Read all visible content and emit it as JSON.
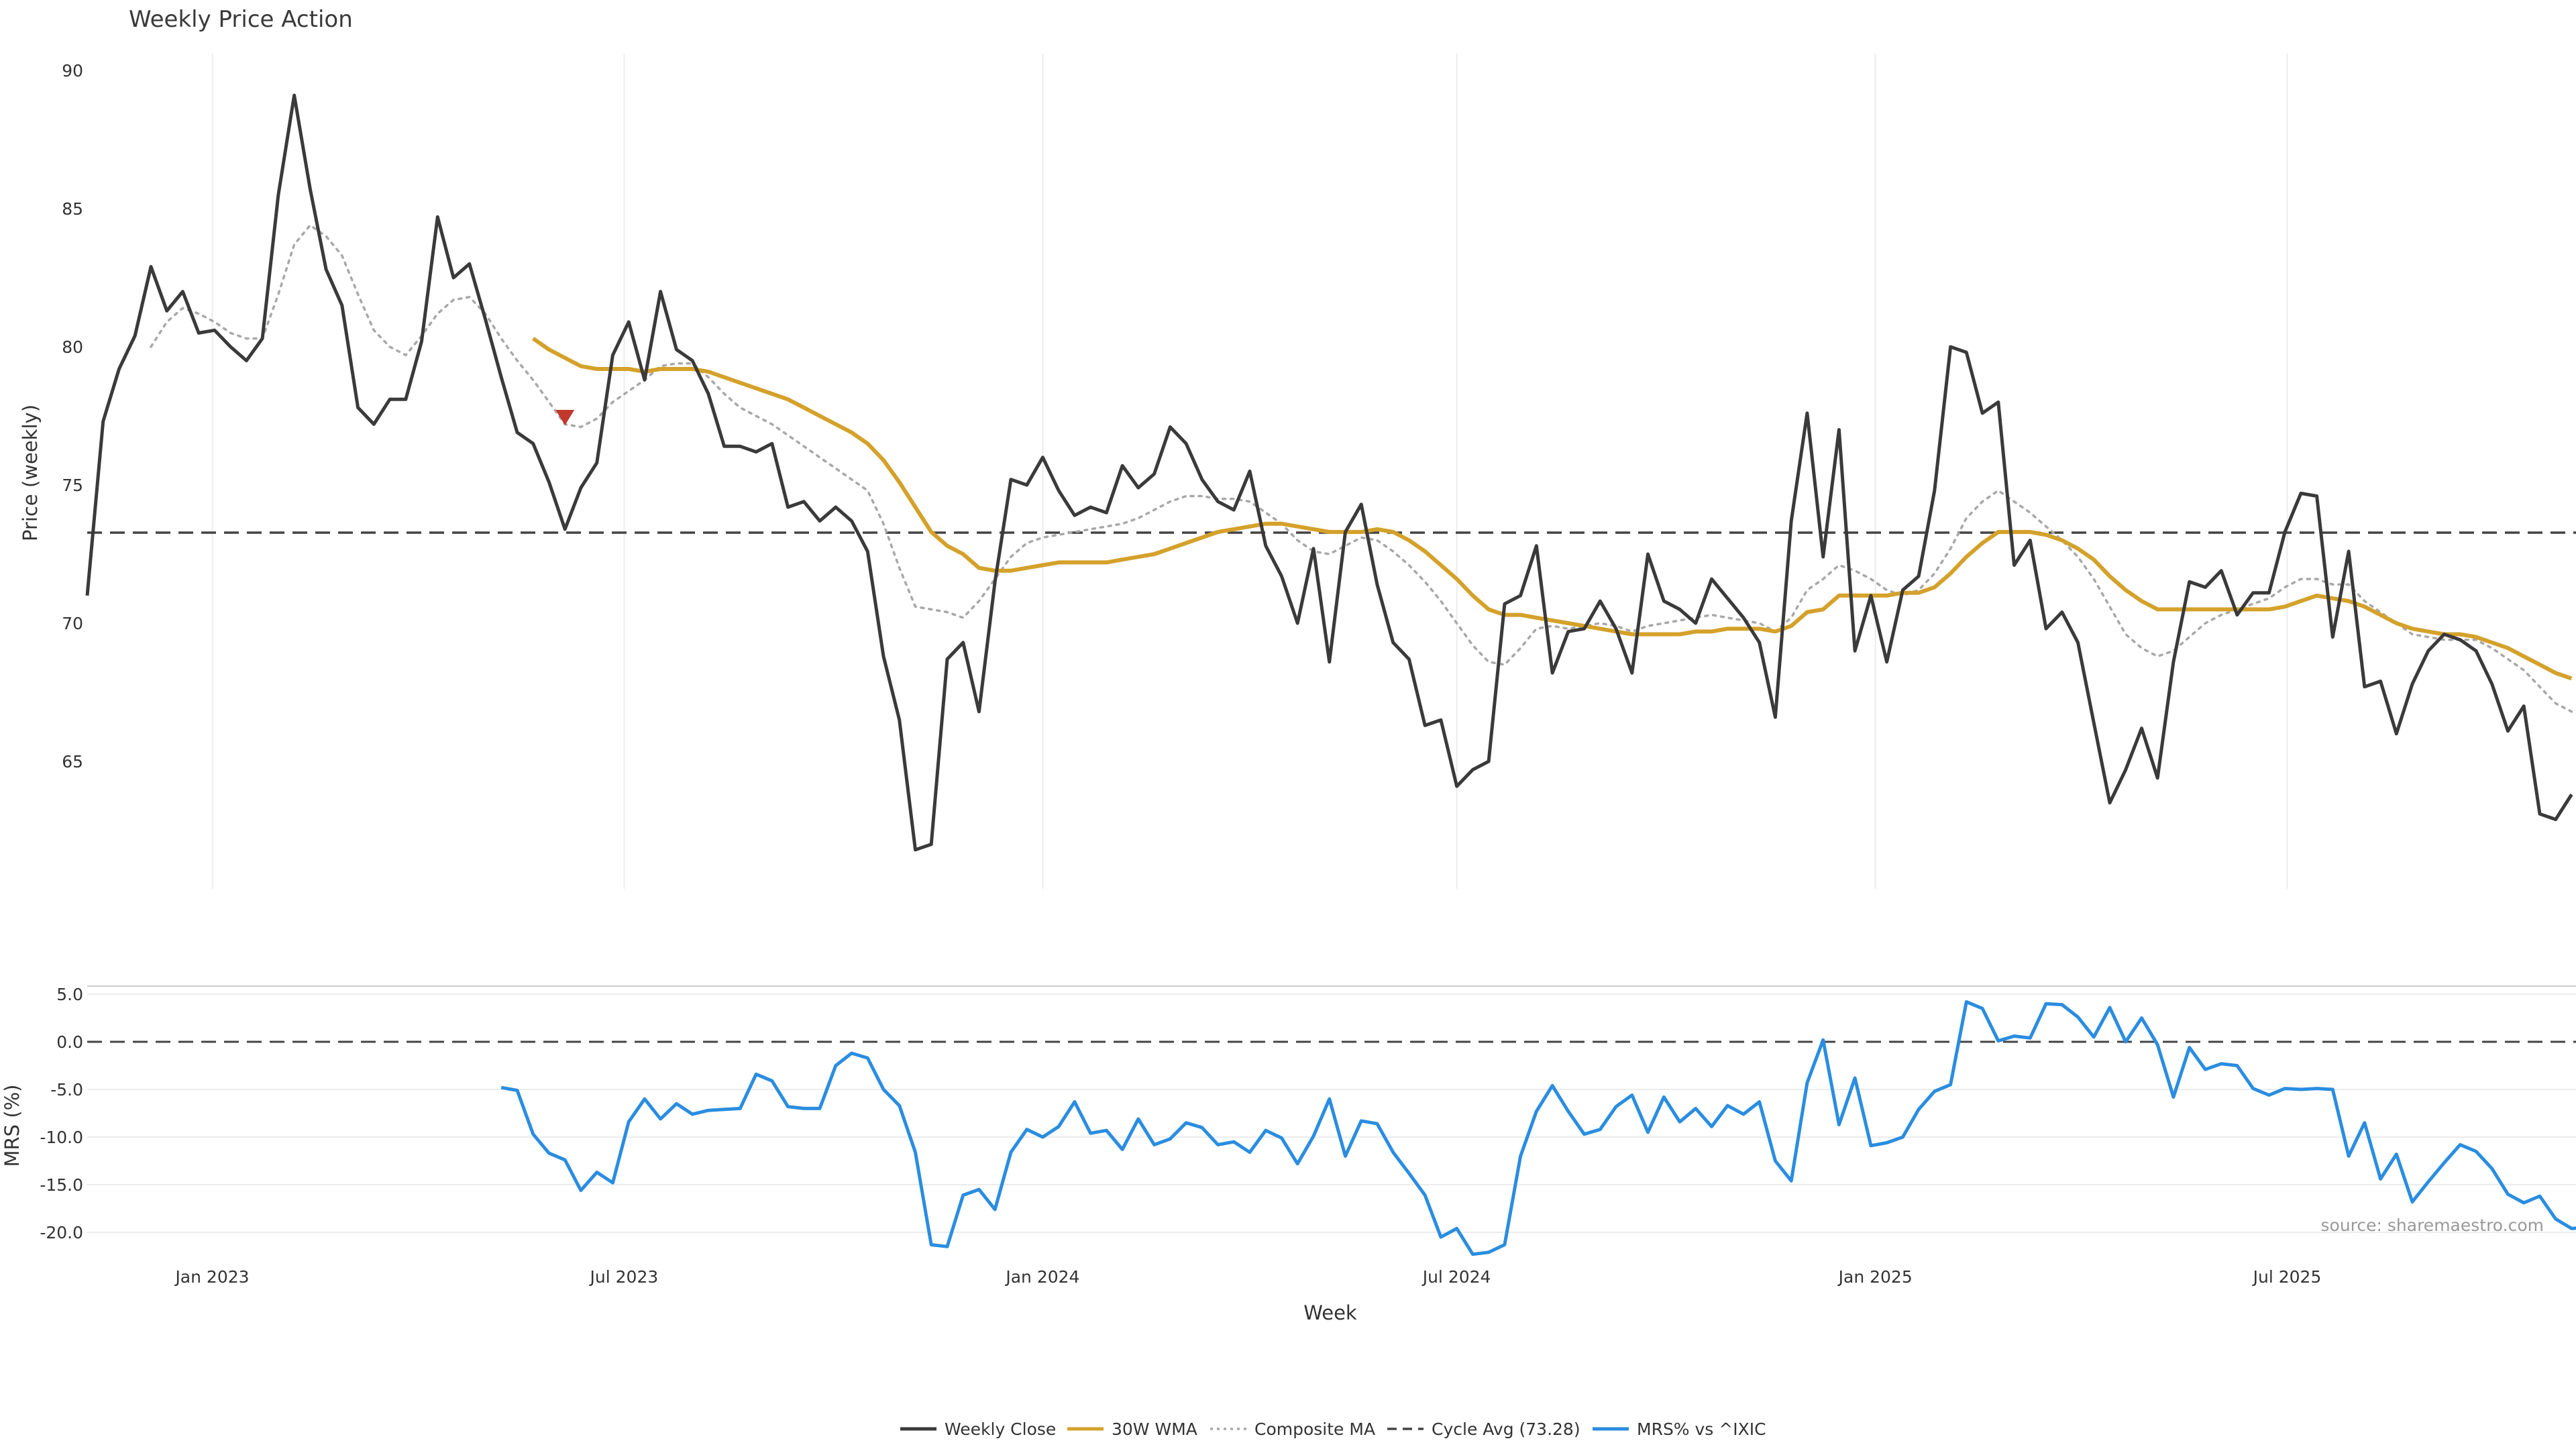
{
  "chart_data": [
    {
      "type": "line",
      "title": "Weekly Price Action",
      "xlabel": "",
      "ylabel": "Price (weekly)",
      "ylim": [
        60,
        90
      ],
      "yticks": [
        "65",
        "70",
        "75",
        "80",
        "85",
        "90"
      ],
      "xticks": [
        "Jan 2023",
        "Jul 2023",
        "Jan 2024",
        "Jul 2024",
        "Jan 2025",
        "Jul 2025"
      ],
      "x_start": "2022-11-07",
      "x_step_days": 7,
      "grid": {
        "x": true,
        "y": false
      },
      "series": [
        {
          "name": "Weekly Close",
          "color": "#3a3a3a",
          "style": "solid",
          "values": [
            71.0,
            77.3,
            79.2,
            80.4,
            82.9,
            81.3,
            82.0,
            80.5,
            80.6,
            80.0,
            79.5,
            80.3,
            85.5,
            89.1,
            85.7,
            82.8,
            81.5,
            77.8,
            77.2,
            78.1,
            78.1,
            80.2,
            84.7,
            82.5,
            83.0,
            81.0,
            78.9,
            76.9,
            76.5,
            75.1,
            73.4,
            74.9,
            75.8,
            79.7,
            80.9,
            78.8,
            82.0,
            79.9,
            79.5,
            78.3,
            76.4,
            76.4,
            76.2,
            76.5,
            74.2,
            74.4,
            73.7,
            74.2,
            73.7,
            72.6,
            68.8,
            66.5,
            61.8,
            62.0,
            68.7,
            69.3,
            66.8,
            71.5,
            75.2,
            75.0,
            76.0,
            74.8,
            73.9,
            74.2,
            74.0,
            75.7,
            74.9,
            75.4,
            77.1,
            76.5,
            75.2,
            74.4,
            74.1,
            75.5,
            72.8,
            71.7,
            70.0,
            72.7,
            68.6,
            73.3,
            74.3,
            71.4,
            69.3,
            68.7,
            66.3,
            66.5,
            64.1,
            64.7,
            65.0,
            70.7,
            71.0,
            72.8,
            68.2,
            69.7,
            69.8,
            70.8,
            69.8,
            68.2,
            72.5,
            70.8,
            70.5,
            70.0,
            71.6,
            70.9,
            70.2,
            69.3,
            66.6,
            73.7,
            77.6,
            72.4,
            77.0,
            69.0,
            71.0,
            68.6,
            71.2,
            71.7,
            74.8,
            80.0,
            79.8,
            77.6,
            78.0,
            72.1,
            73.0,
            69.8,
            70.4,
            69.3,
            66.4,
            63.5,
            64.7,
            66.2,
            64.4,
            68.6,
            71.5,
            71.3,
            71.9,
            70.3,
            71.1,
            71.1,
            73.3,
            74.7,
            74.6,
            69.5,
            72.6,
            67.7,
            67.9,
            66.0,
            67.8,
            69.0,
            69.6,
            69.4,
            69.0,
            67.8,
            66.1,
            67.0,
            63.1,
            62.9,
            63.8
          ]
        },
        {
          "name": "30W WMA",
          "color": "#d4a12a",
          "style": "solid",
          "values": [
            null,
            null,
            null,
            null,
            null,
            null,
            null,
            null,
            null,
            null,
            null,
            null,
            null,
            null,
            null,
            null,
            null,
            null,
            null,
            null,
            null,
            null,
            null,
            null,
            null,
            null,
            null,
            null,
            80.3,
            79.9,
            79.6,
            79.3,
            79.2,
            79.2,
            79.2,
            79.1,
            79.2,
            79.2,
            79.2,
            79.1,
            78.9,
            78.7,
            78.5,
            78.3,
            78.1,
            77.8,
            77.5,
            77.2,
            76.9,
            76.5,
            75.9,
            75.1,
            74.2,
            73.3,
            72.8,
            72.5,
            72.0,
            71.9,
            71.9,
            72.0,
            72.1,
            72.2,
            72.2,
            72.2,
            72.2,
            72.3,
            72.4,
            72.5,
            72.7,
            72.9,
            73.1,
            73.3,
            73.4,
            73.5,
            73.6,
            73.6,
            73.5,
            73.4,
            73.3,
            73.3,
            73.3,
            73.4,
            73.3,
            73.0,
            72.6,
            72.1,
            71.6,
            71.0,
            70.5,
            70.3,
            70.3,
            70.2,
            70.1,
            70.0,
            69.9,
            69.8,
            69.7,
            69.6,
            69.6,
            69.6,
            69.6,
            69.7,
            69.7,
            69.8,
            69.8,
            69.8,
            69.7,
            69.9,
            70.4,
            70.5,
            71.0,
            71.0,
            71.0,
            71.0,
            71.1,
            71.1,
            71.3,
            71.8,
            72.4,
            72.9,
            73.3,
            73.3,
            73.3,
            73.2,
            73.0,
            72.7,
            72.3,
            71.7,
            71.2,
            70.8,
            70.5,
            70.5,
            70.5,
            70.5,
            70.5,
            70.5,
            70.5,
            70.5,
            70.6,
            70.8,
            71.0,
            70.9,
            70.8,
            70.6,
            70.3,
            70.0,
            69.8,
            69.7,
            69.6,
            69.6,
            69.5,
            69.3,
            69.1,
            68.8,
            68.5,
            68.2,
            68.0
          ]
        },
        {
          "name": "Composite MA",
          "color": "#a8a8a8",
          "style": "dotted",
          "values": [
            null,
            null,
            null,
            null,
            80.0,
            80.9,
            81.4,
            81.2,
            80.9,
            80.5,
            80.3,
            80.3,
            81.9,
            83.7,
            84.4,
            84.0,
            83.3,
            81.9,
            80.6,
            80.0,
            79.7,
            80.4,
            81.2,
            81.7,
            81.8,
            81.2,
            80.3,
            79.5,
            78.8,
            78.0,
            77.2,
            77.1,
            77.4,
            78.0,
            78.4,
            78.8,
            79.3,
            79.4,
            79.4,
            78.9,
            78.3,
            77.8,
            77.5,
            77.2,
            76.8,
            76.4,
            76.0,
            75.6,
            75.2,
            74.8,
            73.6,
            72.0,
            70.6,
            70.5,
            70.4,
            70.2,
            70.8,
            71.6,
            72.4,
            72.9,
            73.1,
            73.2,
            73.3,
            73.4,
            73.5,
            73.6,
            73.8,
            74.1,
            74.4,
            74.6,
            74.6,
            74.5,
            74.5,
            74.4,
            74.0,
            73.6,
            73.0,
            72.6,
            72.5,
            72.8,
            73.1,
            73.0,
            72.6,
            72.1,
            71.5,
            70.8,
            70.0,
            69.2,
            68.6,
            68.5,
            69.1,
            69.8,
            69.9,
            69.8,
            69.9,
            70.0,
            69.9,
            69.7,
            69.9,
            70.0,
            70.1,
            70.2,
            70.3,
            70.2,
            70.1,
            70.0,
            69.7,
            70.2,
            71.2,
            71.6,
            72.1,
            71.9,
            71.6,
            71.2,
            71.0,
            71.2,
            71.8,
            72.7,
            73.8,
            74.4,
            74.8,
            74.4,
            74.0,
            73.5,
            73.0,
            72.4,
            71.6,
            70.6,
            69.6,
            69.1,
            68.8,
            69.0,
            69.5,
            70.0,
            70.3,
            70.5,
            70.7,
            70.9,
            71.3,
            71.6,
            71.6,
            71.4,
            71.4,
            70.8,
            70.4,
            70.0,
            69.6,
            69.5,
            69.4,
            69.4,
            69.4,
            69.1,
            68.7,
            68.3,
            67.7,
            67.1,
            66.8
          ]
        },
        {
          "name": "Cycle Avg (73.28)",
          "color": "#444444",
          "style": "dashed",
          "values": [
            73.28
          ]
        }
      ],
      "markers": [
        {
          "type": "sell-triangle",
          "color": "#c0392b",
          "x_index": 30,
          "y": 77.5
        }
      ]
    },
    {
      "type": "line",
      "title": "",
      "xlabel": "Week",
      "ylabel": "MRS (%)",
      "ylim": [
        -22.5,
        5.5
      ],
      "yticks": [
        "5.0",
        "0.0",
        "-5.0",
        "-10.0",
        "-15.0",
        "-20.0"
      ],
      "xticks": [
        "Jan 2023",
        "Jul 2023",
        "Jan 2024",
        "Jul 2024",
        "Jan 2025",
        "Jul 2025"
      ],
      "grid": {
        "x": false,
        "y": true
      },
      "series": [
        {
          "name": "MRS% vs ^IXIC",
          "color": "#2a8de0",
          "style": "solid",
          "start_index": 26,
          "values": [
            -4.8,
            -5.1,
            -9.7,
            -11.7,
            -12.4,
            -15.6,
            -13.7,
            -14.8,
            -8.4,
            -6.0,
            -8.1,
            -6.5,
            -7.6,
            -7.2,
            -7.1,
            -7.0,
            -3.4,
            -4.1,
            -6.8,
            -7.0,
            -7.0,
            -2.5,
            -1.2,
            -1.7,
            -5.0,
            -6.7,
            -11.6,
            -21.3,
            -21.5,
            -16.1,
            -15.5,
            -17.6,
            -11.6,
            -9.2,
            -10.0,
            -8.9,
            -6.3,
            -9.6,
            -9.3,
            -11.3,
            -8.1,
            -10.8,
            -10.2,
            -8.5,
            -9.0,
            -10.8,
            -10.5,
            -11.6,
            -9.3,
            -10.1,
            -12.8,
            -9.9,
            -6.0,
            -12.0,
            -8.3,
            -8.6,
            -11.6,
            -13.8,
            -16.1,
            -20.5,
            -19.6,
            -22.3,
            -22.1,
            -21.3,
            -12.0,
            -7.3,
            -4.6,
            -7.3,
            -9.7,
            -9.2,
            -6.8,
            -5.6,
            -9.5,
            -5.8,
            -8.4,
            -7.0,
            -8.9,
            -6.7,
            -7.6,
            -6.3,
            -12.5,
            -14.6,
            -4.3,
            0.2,
            -8.7,
            -3.8,
            -10.9,
            -10.6,
            -10.0,
            -7.1,
            -5.2,
            -4.5,
            4.2,
            3.5,
            0.1,
            0.6,
            0.4,
            4.0,
            3.9,
            2.6,
            0.5,
            3.6,
            0.0,
            2.5,
            -0.3,
            -5.8,
            -0.6,
            -2.9,
            -2.3,
            -2.5,
            -4.9,
            -5.6,
            -4.9,
            -5.0,
            -4.9,
            -5.0,
            -12.0,
            -8.5,
            -14.4,
            -11.8,
            -16.8,
            -14.7,
            -12.7,
            -10.8,
            -11.5,
            -13.3,
            -16.0,
            -16.9,
            -16.2,
            -18.6,
            -19.6,
            -19.5
          ]
        }
      ]
    }
  ],
  "source_note": "source: sharemaestro.com"
}
